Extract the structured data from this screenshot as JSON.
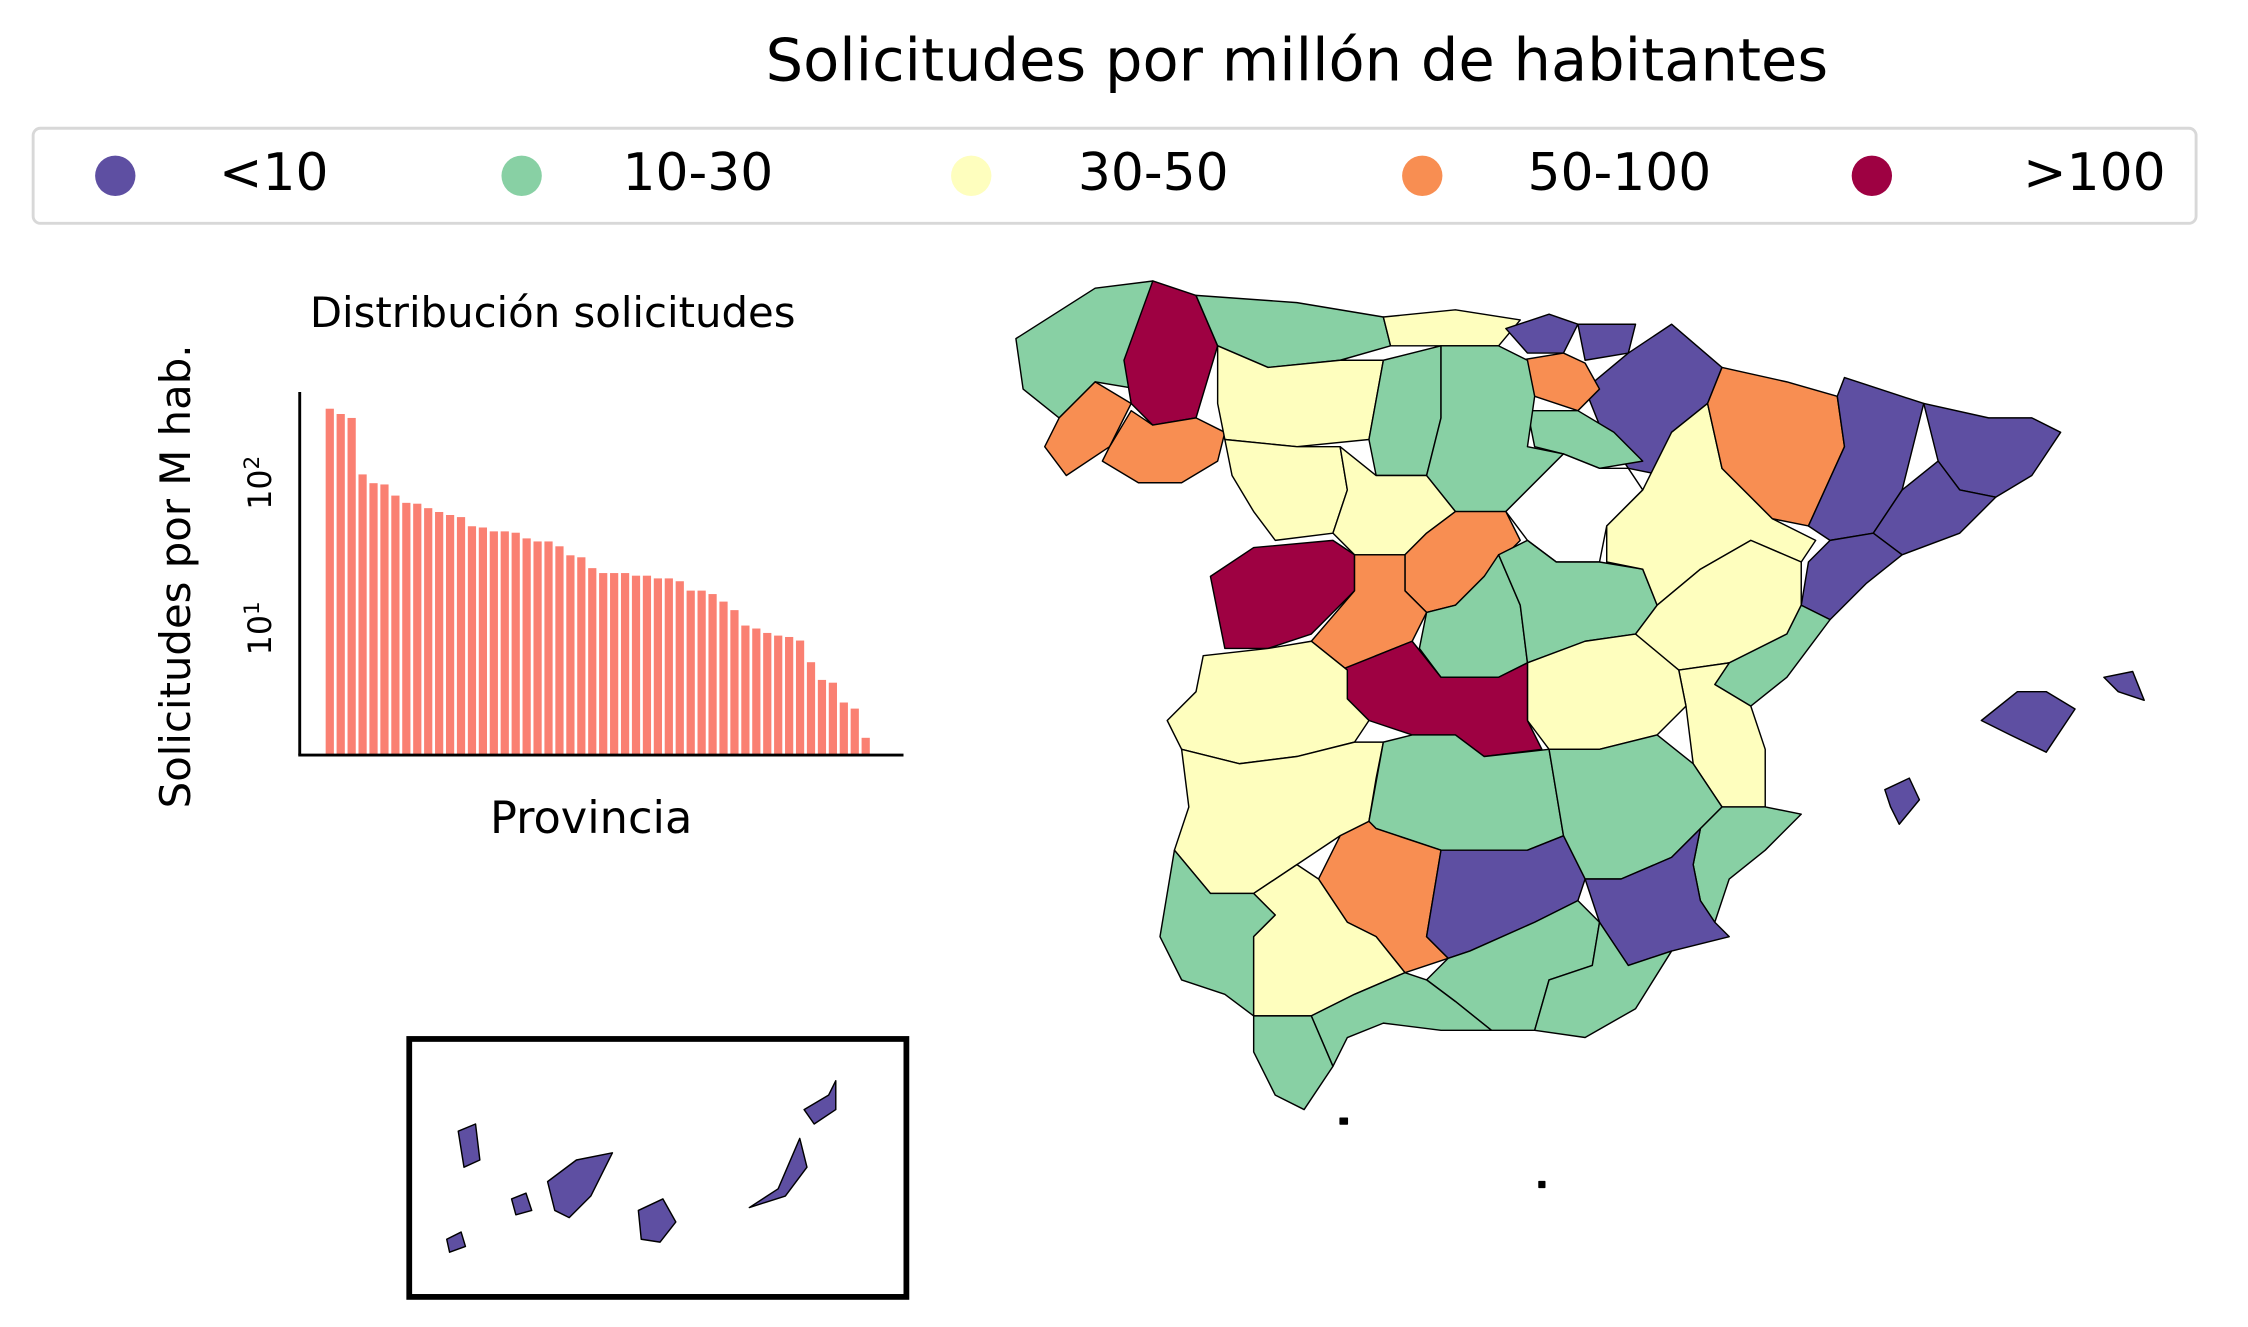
{
  "title": "Solicitudes por millón de habitantes",
  "legend": {
    "items": [
      {
        "label": "<10",
        "color": "#5e4fa2"
      },
      {
        "label": "10-30",
        "color": "#88d0a4"
      },
      {
        "label": "30-50",
        "color": "#fefebe"
      },
      {
        "label": "50-100",
        "color": "#f88e52"
      },
      {
        "label": ">100",
        "color": "#9e0142"
      }
    ]
  },
  "no_data_color": "#ffffff",
  "chart_data": {
    "type": "bar",
    "title": "Distribución solicitudes",
    "xlabel": "Provincia",
    "ylabel": "Solicitudes por M hab.",
    "yscale": "log",
    "ylim": [
      1.45,
      425
    ],
    "ytick_labels": [
      {
        "base": "10",
        "exp": "1",
        "value": 10
      },
      {
        "base": "10",
        "exp": "2",
        "value": 100
      }
    ],
    "bar_color": "#fa8072",
    "grid": false,
    "values": [
      327,
      301,
      283,
      117,
      102,
      100,
      84,
      75,
      74,
      69,
      65,
      62,
      60,
      52,
      51,
      48,
      48,
      47,
      43,
      41,
      41,
      38,
      33,
      32,
      27,
      25,
      25,
      25,
      24,
      24,
      23,
      23,
      22,
      19,
      19,
      18,
      16,
      14,
      11,
      10.5,
      9.8,
      9.4,
      9.2,
      8.7,
      6.2,
      4.7,
      4.5,
      3.3,
      3.0,
      1.9
    ]
  }
}
